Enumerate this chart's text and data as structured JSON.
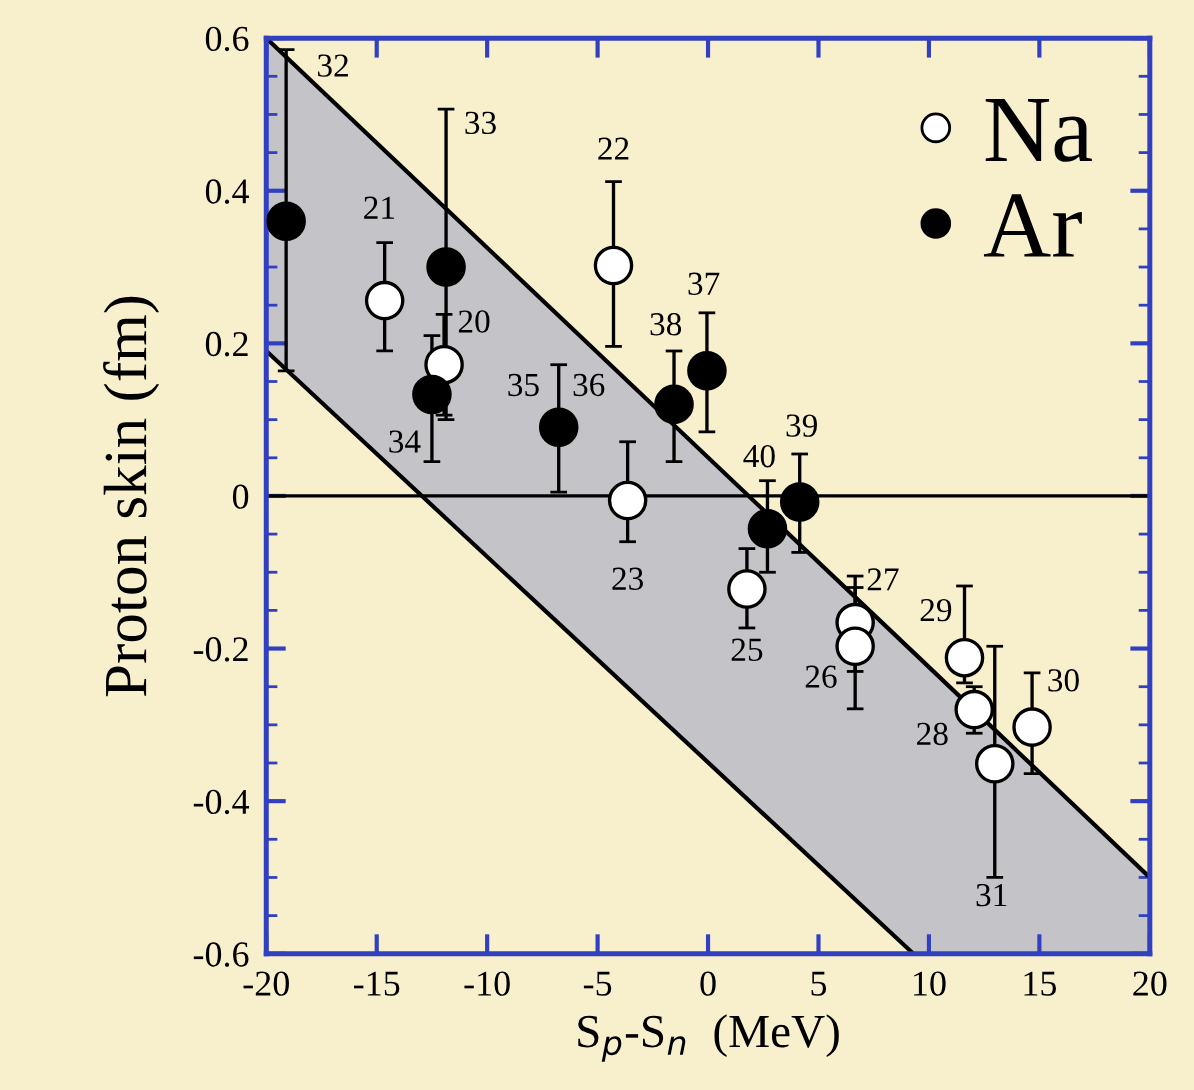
{
  "chart_data": {
    "type": "scatter",
    "xlabel": "S$_{p}$-S$_{n}$  (MeV)",
    "ylabel": "Proton skin (fm)",
    "xlim": [
      -20,
      20
    ],
    "xticks": [
      -20,
      -15,
      -10,
      -5,
      0,
      5,
      10,
      15,
      20
    ],
    "ylim": [
      -0.6,
      0.6
    ],
    "yticks": [
      -0.6,
      -0.4,
      -0.2,
      0,
      0.2,
      0.4,
      0.6
    ],
    "legend": "top right",
    "marker": "circle",
    "grid": false,
    "ref_lines": [
      {
        "axis": "y",
        "value": 0,
        "color": "#000000"
      }
    ],
    "series": [
      {
        "type": "line",
        "marker": "none",
        "color": "#000000",
        "x": [
          -20,
          9.3,
          20
        ],
        "values": [
          0.6,
          -0.205,
          -0.5
        ],
        "lower": [
          0.19,
          -0.6,
          -0.6
        ],
        "upper": [
          0.6,
          -0.205,
          -0.5
        ]
      },
      {
        "type": "line",
        "marker": "none",
        "color": "#000000",
        "x": [
          -20,
          9.3
        ],
        "values": [
          0.19,
          -0.6
        ]
      },
      {
        "name": "Na",
        "color": "#ffffff",
        "x": [
          -14.64,
          -11.95,
          -4.28,
          -3.64,
          1.76,
          6.66,
          6.66,
          11.61,
          12.05,
          12.98,
          14.67
        ],
        "values": [
          0.256,
          0.172,
          0.302,
          -0.006,
          -0.122,
          -0.166,
          -0.197,
          -0.212,
          -0.28,
          -0.351,
          -0.303
        ],
        "errors": [
          [
            0.19,
            0.332
          ],
          [
            0.106,
            0.238
          ],
          [
            0.196,
            0.412
          ],
          [
            -0.06,
            0.071
          ],
          [
            -0.173,
            -0.069
          ],
          [
            -0.23,
            -0.105
          ],
          [
            -0.279,
            -0.12
          ],
          [
            -0.245,
            -0.118
          ],
          [
            -0.311,
            -0.25
          ],
          [
            -0.5,
            -0.197
          ],
          [
            -0.364,
            -0.232
          ]
        ]
      },
      {
        "name": "Ar",
        "color": "#000000",
        "x": [
          -19.1,
          -11.86,
          -12.5,
          -6.76,
          -1.54,
          -0.05,
          2.69,
          4.15
        ],
        "values": [
          0.36,
          0.3,
          0.133,
          0.09,
          0.12,
          0.164,
          -0.043,
          -0.008
        ],
        "errors": [
          [
            0.164,
            0.585
          ],
          [
            0.1,
            0.507
          ],
          [
            0.045,
            0.21
          ],
          [
            0.005,
            0.172
          ],
          [
            0.045,
            0.19
          ],
          [
            0.084,
            0.24
          ],
          [
            -0.1,
            0.02
          ],
          [
            -0.074,
            0.055
          ]
        ]
      }
    ],
    "annotations": [
      {
        "text": "32",
        "x": -19.1,
        "y": 0.585
      },
      {
        "text": "33",
        "x": -11.86,
        "y": 0.507
      },
      {
        "text": "21",
        "x": -14.64,
        "y": 0.256
      },
      {
        "text": "22",
        "x": -4.28,
        "y": 0.412
      },
      {
        "text": "20",
        "x": -11.95,
        "y": 0.172
      },
      {
        "text": "35",
        "x": -6.76,
        "y": 0.09
      },
      {
        "text": "36",
        "x": -6.76,
        "y": 0.09
      },
      {
        "text": "34",
        "x": -12.5,
        "y": 0.133
      },
      {
        "text": "38",
        "x": -1.54,
        "y": 0.12
      },
      {
        "text": "37",
        "x": -0.05,
        "y": 0.164
      },
      {
        "text": "40",
        "x": 2.69,
        "y": -0.043
      },
      {
        "text": "39",
        "x": 4.15,
        "y": -0.008
      },
      {
        "text": "23",
        "x": -3.64,
        "y": -0.006
      },
      {
        "text": "25",
        "x": 1.76,
        "y": -0.122
      },
      {
        "text": "27",
        "x": 6.66,
        "y": -0.166
      },
      {
        "text": "26",
        "x": 6.66,
        "y": -0.197
      },
      {
        "text": "29",
        "x": 11.61,
        "y": -0.212
      },
      {
        "text": "28",
        "x": 12.05,
        "y": -0.28
      },
      {
        "text": "30",
        "x": 14.67,
        "y": -0.303
      },
      {
        "text": "31",
        "x": 12.98,
        "y": -0.5
      }
    ]
  }
}
